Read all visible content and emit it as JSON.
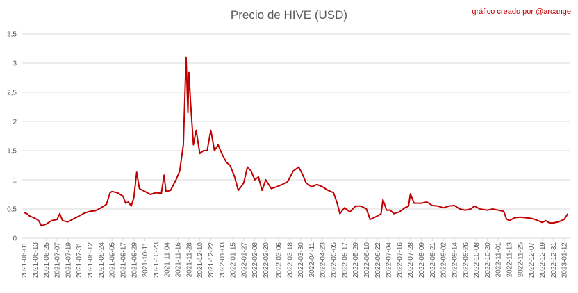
{
  "chart_data": {
    "type": "line",
    "title": "Precio de HIVE (USD)",
    "annotation": "gráfico creado por @arcange",
    "color": "#c00000",
    "grid": true,
    "xlim": [
      "2021-05-30",
      "2023-01-18"
    ],
    "xticks": [
      "2021-06-01",
      "2021-06-13",
      "2021-06-25",
      "2021-07-07",
      "2021-07-19",
      "2021-07-31",
      "2021-08-12",
      "2021-08-24",
      "2021-09-05",
      "2021-09-17",
      "2021-09-29",
      "2021-10-11",
      "2021-10-23",
      "2021-11-04",
      "2021-11-16",
      "2021-11-28",
      "2021-12-10",
      "2021-12-22",
      "2022-01-03",
      "2022-01-15",
      "2022-01-27",
      "2022-02-08",
      "2022-02-20",
      "2022-03-06",
      "2022-03-18",
      "2022-03-30",
      "2022-04-11",
      "2022-04-23",
      "2022-05-05",
      "2022-05-17",
      "2022-05-29",
      "2022-06-10",
      "2022-06-22",
      "2022-07-04",
      "2022-07-16",
      "2022-07-28",
      "2022-08-09",
      "2022-08-21",
      "2022-09-02",
      "2022-09-14",
      "2022-09-26",
      "2022-10-08",
      "2022-10-20",
      "2022-11-01",
      "2022-11-13",
      "2022-11-25",
      "2022-12-07",
      "2022-12-19",
      "2022-12-31",
      "2023-01-12"
    ],
    "ylim": [
      0,
      3.5
    ],
    "yticks": [
      0,
      {
        "value": 0.5,
        "label": "0,5"
      },
      1,
      {
        "value": 1.5,
        "label": "1,5"
      },
      2,
      {
        "value": 2.5,
        "label": "2,5"
      },
      3,
      {
        "value": 3.5,
        "label": "3,5"
      }
    ],
    "x": [
      "2021-06-01",
      "2021-06-04",
      "2021-06-07",
      "2021-06-10",
      "2021-06-13",
      "2021-06-17",
      "2021-06-20",
      "2021-06-25",
      "2021-07-01",
      "2021-07-07",
      "2021-07-10",
      "2021-07-13",
      "2021-07-19",
      "2021-07-25",
      "2021-07-31",
      "2021-08-06",
      "2021-08-12",
      "2021-08-18",
      "2021-08-24",
      "2021-08-30",
      "2021-09-03",
      "2021-09-05",
      "2021-09-11",
      "2021-09-17",
      "2021-09-20",
      "2021-09-23",
      "2021-09-26",
      "2021-09-29",
      "2021-10-02",
      "2021-10-05",
      "2021-10-11",
      "2021-10-17",
      "2021-10-23",
      "2021-10-29",
      "2021-11-01",
      "2021-11-03",
      "2021-11-08",
      "2021-11-14",
      "2021-11-18",
      "2021-11-22",
      "2021-11-25",
      "2021-11-27",
      "2021-11-28",
      "2021-11-30",
      "2021-12-03",
      "2021-12-06",
      "2021-12-10",
      "2021-12-14",
      "2021-12-18",
      "2021-12-22",
      "2021-12-26",
      "2021-12-30",
      "2022-01-03",
      "2022-01-08",
      "2022-01-12",
      "2022-01-17",
      "2022-01-21",
      "2022-01-25",
      "2022-01-27",
      "2022-01-31",
      "2022-02-04",
      "2022-02-08",
      "2022-02-12",
      "2022-02-16",
      "2022-02-20",
      "2022-02-26",
      "2022-03-04",
      "2022-03-10",
      "2022-03-16",
      "2022-03-22",
      "2022-03-28",
      "2022-04-01",
      "2022-04-05",
      "2022-04-11",
      "2022-04-17",
      "2022-04-23",
      "2022-04-29",
      "2022-05-05",
      "2022-05-09",
      "2022-05-12",
      "2022-05-17",
      "2022-05-23",
      "2022-05-29",
      "2022-06-04",
      "2022-06-10",
      "2022-06-14",
      "2022-06-18",
      "2022-06-22",
      "2022-06-26",
      "2022-06-28",
      "2022-07-02",
      "2022-07-06",
      "2022-07-10",
      "2022-07-16",
      "2022-07-22",
      "2022-07-26",
      "2022-07-28",
      "2022-08-01",
      "2022-08-09",
      "2022-08-15",
      "2022-08-21",
      "2022-08-27",
      "2022-09-02",
      "2022-09-08",
      "2022-09-14",
      "2022-09-20",
      "2022-09-26",
      "2022-10-02",
      "2022-10-06",
      "2022-10-12",
      "2022-10-20",
      "2022-10-26",
      "2022-11-01",
      "2022-11-07",
      "2022-11-10",
      "2022-11-13",
      "2022-11-19",
      "2022-11-25",
      "2022-12-01",
      "2022-12-07",
      "2022-12-13",
      "2022-12-19",
      "2022-12-23",
      "2022-12-27",
      "2022-12-31",
      "2023-01-06",
      "2023-01-12",
      "2023-01-16"
    ],
    "values": [
      0.44,
      0.42,
      0.38,
      0.36,
      0.34,
      0.3,
      0.21,
      0.24,
      0.3,
      0.32,
      0.42,
      0.3,
      0.28,
      0.33,
      0.38,
      0.43,
      0.46,
      0.47,
      0.52,
      0.58,
      0.78,
      0.8,
      0.78,
      0.72,
      0.6,
      0.62,
      0.55,
      0.7,
      1.13,
      0.85,
      0.8,
      0.75,
      0.78,
      0.77,
      1.08,
      0.8,
      0.82,
      1.0,
      1.15,
      1.6,
      3.1,
      2.15,
      2.85,
      2.3,
      1.6,
      1.85,
      1.45,
      1.5,
      1.5,
      1.85,
      1.5,
      1.6,
      1.45,
      1.3,
      1.25,
      1.05,
      0.82,
      0.9,
      0.95,
      1.22,
      1.15,
      1.0,
      1.05,
      0.82,
      1.0,
      0.85,
      0.88,
      0.92,
      0.97,
      1.15,
      1.22,
      1.1,
      0.95,
      0.88,
      0.92,
      0.88,
      0.82,
      0.78,
      0.6,
      0.42,
      0.52,
      0.45,
      0.55,
      0.55,
      0.5,
      0.32,
      0.35,
      0.38,
      0.42,
      0.66,
      0.48,
      0.48,
      0.42,
      0.45,
      0.52,
      0.55,
      0.76,
      0.6,
      0.6,
      0.62,
      0.56,
      0.55,
      0.52,
      0.55,
      0.56,
      0.5,
      0.48,
      0.5,
      0.55,
      0.5,
      0.48,
      0.5,
      0.48,
      0.46,
      0.33,
      0.3,
      0.35,
      0.36,
      0.35,
      0.34,
      0.31,
      0.27,
      0.3,
      0.26,
      0.26,
      0.28,
      0.32,
      0.42
    ]
  }
}
